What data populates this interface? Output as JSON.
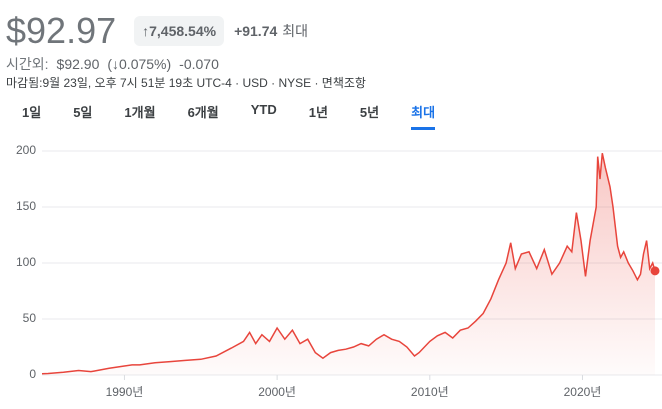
{
  "header": {
    "price": "$92.97",
    "change_pct": "↑7,458.54%",
    "change_abs": "+91.74",
    "period": "최대",
    "after_hours_label": "시간외:",
    "after_hours_price": "$92.90",
    "after_hours_pct": "(↓0.075%)",
    "after_hours_change": "-0.070",
    "closed_info": "마감됨:9월 23일, 오후 7시 51분 19초 UTC-4 · USD · NYSE · 면책조항"
  },
  "tabs": [
    {
      "label": "1일",
      "selected": false
    },
    {
      "label": "5일",
      "selected": false
    },
    {
      "label": "1개월",
      "selected": false
    },
    {
      "label": "6개월",
      "selected": false
    },
    {
      "label": "YTD",
      "selected": false
    },
    {
      "label": "1년",
      "selected": false
    },
    {
      "label": "5년",
      "selected": false
    },
    {
      "label": "최대",
      "selected": true
    }
  ],
  "chart_data": {
    "type": "line",
    "color": "#e8453c",
    "grid": true,
    "x": [
      1984.6,
      1985,
      1986,
      1987,
      1987.8,
      1988,
      1989,
      1990,
      1990.5,
      1991,
      1992,
      1993,
      1994,
      1995,
      1996,
      1997,
      1997.8,
      1998.2,
      1998.6,
      1999,
      1999.5,
      2000,
      2000.5,
      2001,
      2001.5,
      2002,
      2002.5,
      2003,
      2003.5,
      2004,
      2004.5,
      2005,
      2005.5,
      2006,
      2006.5,
      2007,
      2007.5,
      2008,
      2008.5,
      2009,
      2009.3,
      2010,
      2010.5,
      2011,
      2011.5,
      2012,
      2012.5,
      2013,
      2013.5,
      2014,
      2014.5,
      2015,
      2015.3,
      2015.6,
      2016,
      2016.5,
      2017,
      2017.5,
      2018,
      2018.5,
      2019,
      2019.3,
      2019.6,
      2019.9,
      2020.2,
      2020.5,
      2020.9,
      2021,
      2021.15,
      2021.3,
      2021.5,
      2021.8,
      2022,
      2022.3,
      2022.5,
      2022.7,
      2023,
      2023.3,
      2023.6,
      2023.8,
      2024,
      2024.2,
      2024.4,
      2024.6,
      2024.75
    ],
    "values": [
      1.2,
      1.3,
      2.5,
      4,
      3,
      3.5,
      6,
      8,
      9,
      9,
      11,
      12,
      13,
      14,
      17,
      24,
      30,
      38,
      28,
      36,
      30,
      42,
      32,
      40,
      28,
      32,
      20,
      15,
      20,
      22,
      23,
      25,
      28,
      26,
      32,
      36,
      32,
      30,
      25,
      17,
      20,
      30,
      35,
      38,
      33,
      40,
      42,
      48,
      55,
      68,
      85,
      100,
      118,
      95,
      108,
      110,
      95,
      112,
      90,
      100,
      115,
      110,
      145,
      120,
      88,
      120,
      150,
      195,
      175,
      198,
      185,
      168,
      150,
      115,
      105,
      110,
      100,
      93,
      85,
      90,
      108,
      120,
      95,
      100,
      92.97
    ],
    "xlim": [
      1984.6,
      2024.75
    ],
    "ylim": [
      0,
      200
    ],
    "yticks": [
      0,
      50,
      100,
      150,
      200
    ],
    "xticks": [
      {
        "value": 1990,
        "label": "1990년"
      },
      {
        "value": 2000,
        "label": "2000년"
      },
      {
        "value": 2010,
        "label": "2010년"
      },
      {
        "value": 2020,
        "label": "2020년"
      }
    ]
  }
}
